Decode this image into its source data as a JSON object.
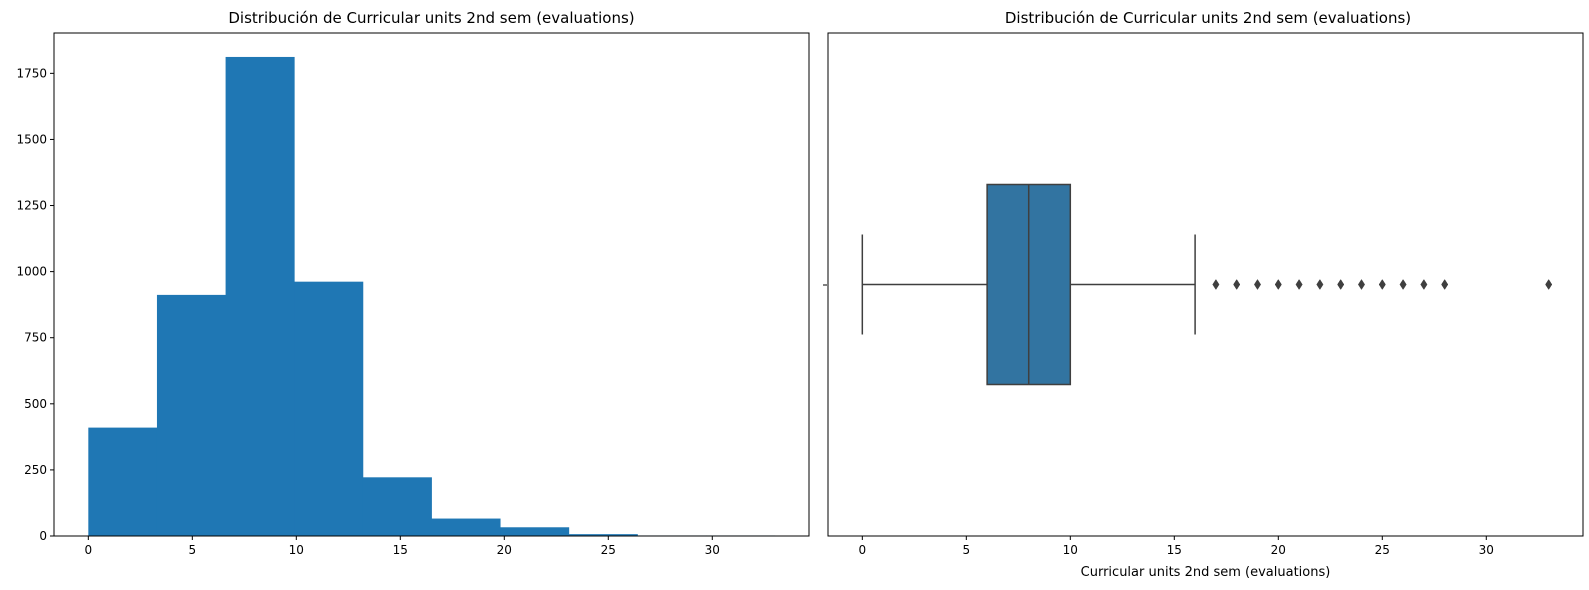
{
  "chart_data": [
    {
      "type": "bar",
      "subtype": "histogram",
      "title": "Distribución de Curricular units 2nd sem (evaluations)",
      "xlabel": "",
      "ylabel": "",
      "bin_edges": [
        0,
        3.3,
        6.6,
        9.9,
        13.2,
        16.5,
        19.8,
        23.1,
        26.4,
        29.7,
        33
      ],
      "values": [
        410,
        912,
        1812,
        962,
        222,
        66,
        33,
        7,
        2,
        2
      ],
      "xlim": [
        -1.65,
        34.65
      ],
      "ylim": [
        0,
        1902.6
      ],
      "x_ticks": [
        0,
        5,
        10,
        15,
        20,
        25,
        30
      ],
      "y_ticks": [
        0,
        250,
        500,
        750,
        1000,
        1250,
        1500,
        1750
      ],
      "color": "#1f77b4",
      "grid": false
    },
    {
      "type": "boxplot",
      "title": "Distribución de Curricular units 2nd sem (evaluations)",
      "xlabel": "Curricular units 2nd sem (evaluations)",
      "ylabel": "",
      "whisker_low": 0,
      "q1": 6,
      "median": 8,
      "q3": 10,
      "whisker_high": 16,
      "outliers": [
        17,
        18,
        19,
        20,
        21,
        22,
        23,
        24,
        25,
        26,
        27,
        28,
        33
      ],
      "xlim": [
        -1.65,
        34.65
      ],
      "x_ticks": [
        0,
        5,
        10,
        15,
        20,
        25,
        30
      ],
      "box_color": "#3274a1",
      "line_color": "#3f3f3f",
      "grid": false
    }
  ]
}
